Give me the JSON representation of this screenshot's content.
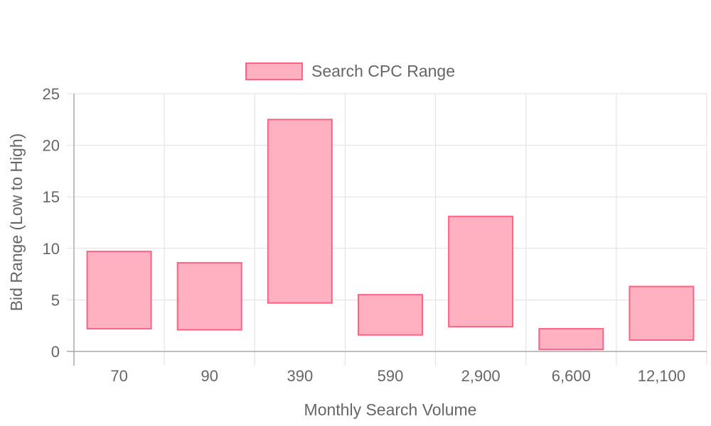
{
  "chart_data": {
    "type": "bar",
    "categories": [
      "70",
      "90",
      "390",
      "590",
      "2,900",
      "6,600",
      "12,100"
    ],
    "series": [
      {
        "name": "Search CPC Range",
        "ranges": [
          [
            2.2,
            9.7
          ],
          [
            2.1,
            8.6
          ],
          [
            4.7,
            22.5
          ],
          [
            1.6,
            5.5
          ],
          [
            2.4,
            13.1
          ],
          [
            0.2,
            2.2
          ],
          [
            1.1,
            6.3
          ]
        ]
      }
    ],
    "xlabel": "Monthly Search Volume",
    "ylabel": "Bid Range (Low to High)",
    "ylim": [
      0,
      25
    ],
    "yticks": [
      "0",
      "5",
      "10",
      "15",
      "20",
      "25"
    ],
    "grid": true,
    "legend_position": "top",
    "colors": {
      "bar_fill": "#ffb1c1",
      "bar_border": "#ff6384",
      "grid": "#e1e1e1",
      "axis": "#a9a9a9",
      "text": "#666666"
    }
  }
}
